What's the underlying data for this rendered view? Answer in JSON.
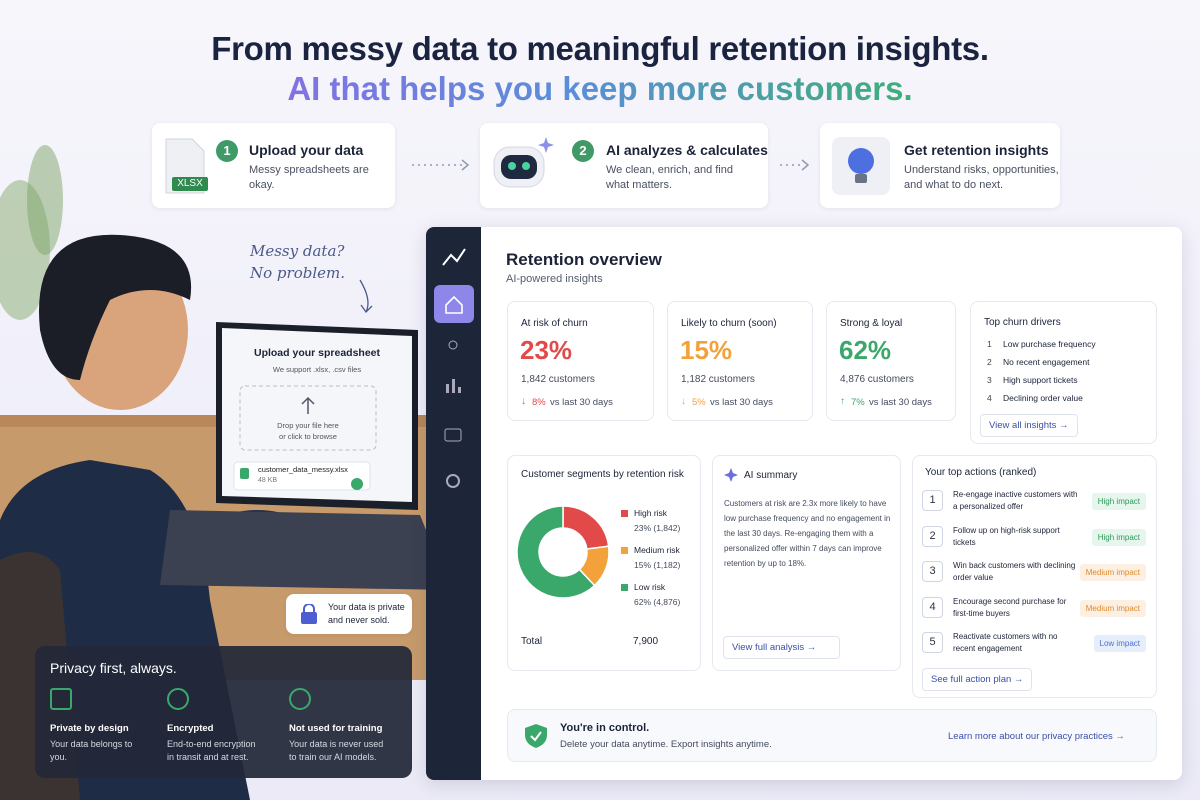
{
  "header": {
    "title": "From messy data to meaningful retention insights.",
    "subtitle": "AI that helps you keep more customers."
  },
  "steps": [
    {
      "number": "1",
      "title": "Upload your data",
      "text": "Messy spreadsheets are okay.",
      "icon_label": "XLSX"
    },
    {
      "number": "2",
      "title": "AI analyzes & calculates",
      "text": "We clean, enrich, and find what matters."
    },
    {
      "title": "Get retention insights",
      "text": "Understand risks, opportunities, and what to do next."
    }
  ],
  "note": {
    "lines": [
      "Messy data?",
      "No problem."
    ]
  },
  "laptop": {
    "title": "Upload your spreadsheet",
    "support": "We support .xlsx, .csv files",
    "drop": [
      "Drop your file here",
      "or click to browse"
    ],
    "file_name": "customer_data_messy.xlsx",
    "file_size": "48 KB"
  },
  "private_badge": {
    "text": "Your data is private and never sold."
  },
  "privacy": {
    "title": "Privacy first, always.",
    "items": [
      {
        "title": "Private by design",
        "text": "Your data belongs to you."
      },
      {
        "title": "Encrypted",
        "text": "End-to-end encryption in transit and at rest."
      },
      {
        "title": "Not used for training",
        "text": "Your data is never used to train our AI models."
      }
    ]
  },
  "dashboard": {
    "title": "Retention overview",
    "subtitle": "AI-powered insights",
    "stats": [
      {
        "label": "At risk of churn",
        "value": "23%",
        "customers": "1,842 customers",
        "change": "8%",
        "compare": "vs last 30 days"
      },
      {
        "label": "Likely to churn (soon)",
        "value": "15%",
        "customers": "1,182 customers",
        "change": "5%",
        "compare": "vs last 30 days"
      },
      {
        "label": "Strong & loyal",
        "value": "62%",
        "customers": "4,876 customers",
        "change": "7%",
        "compare": "vs last 30 days"
      }
    ],
    "drivers": {
      "title": "Top churn drivers",
      "items": [
        {
          "number": "1",
          "text": "Low purchase frequency"
        },
        {
          "number": "2",
          "text": "No recent engagement"
        },
        {
          "number": "3",
          "text": "High support tickets"
        },
        {
          "number": "4",
          "text": "Declining order value"
        }
      ],
      "link": "View all insights"
    },
    "ai_summary": {
      "title": "AI summary",
      "text": "Customers at risk are 2.3x more likely to have low purchase frequency and no engagement in the last 30 days. Re-engaging them with a personalized offer within 7 days can improve retention by up to 18%.",
      "link": "View full analysis"
    },
    "actions": {
      "title": "Your top actions (ranked)",
      "items": [
        {
          "number": "1",
          "text": "Re-engage inactive customers with a personalized offer",
          "impact": "High impact"
        },
        {
          "number": "2",
          "text": "Follow up on high-risk support tickets",
          "impact": "High impact"
        },
        {
          "number": "3",
          "text": "Win back customers with declining order value",
          "impact": "Medium impact"
        },
        {
          "number": "4",
          "text": "Encourage second purchase for first-time buyers",
          "impact": "Medium impact"
        },
        {
          "number": "5",
          "text": "Reactivate customers with no recent engagement",
          "impact": "Low impact"
        }
      ],
      "link": "See full action plan"
    },
    "control": {
      "title": "You're in control.",
      "text": "Delete your data anytime. Export insights anytime.",
      "link": "Learn more about our privacy practices"
    }
  },
  "chart_data": {
    "type": "pie",
    "title": "Customer segments by retention risk",
    "categories": [
      "High risk",
      "Medium risk",
      "Low risk"
    ],
    "values": [
      23,
      15,
      62
    ],
    "value_labels": [
      "23% (1,842)",
      "15% (1,182)",
      "62% (4,876)"
    ],
    "colors": [
      "#e24a4a",
      "#f3a23b",
      "#3aa86b"
    ],
    "total_label": "Total",
    "total_value": "7,900"
  }
}
